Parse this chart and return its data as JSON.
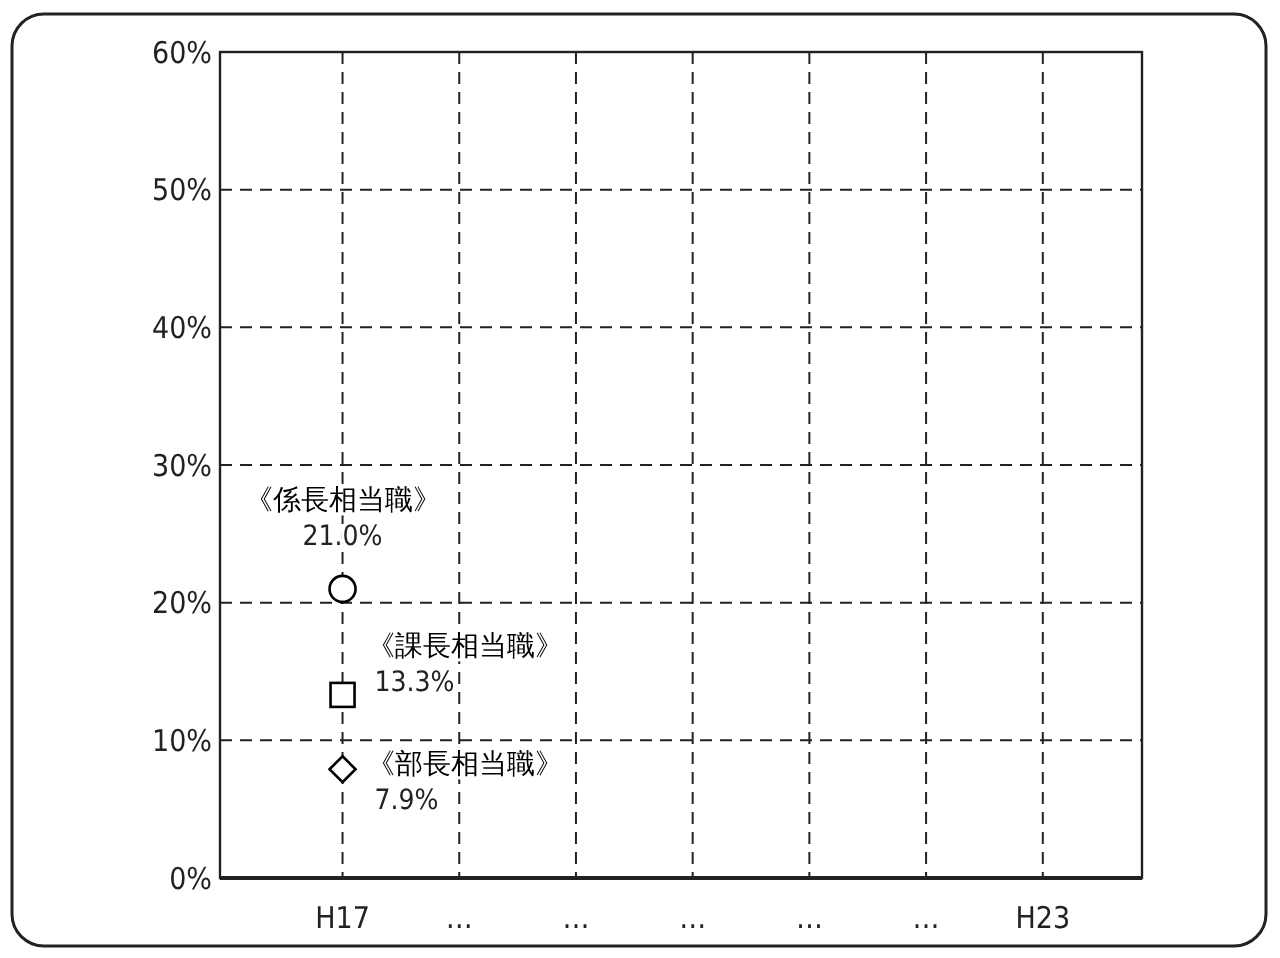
{
  "chart_data": {
    "type": "scatter",
    "categories": [
      "H17",
      "…",
      "…",
      "…",
      "…",
      "…",
      "H23"
    ],
    "series": [
      {
        "name": "《係長相当職》",
        "color": "#000000",
        "marker": "circle",
        "values": [
          21.0,
          null,
          null,
          null,
          null,
          null,
          null
        ],
        "value_labels": [
          "21.0%",
          null,
          null,
          null,
          null,
          null,
          null
        ]
      },
      {
        "name": "《課長相当職》",
        "color": "#000000",
        "marker": "square",
        "values": [
          13.3,
          null,
          null,
          null,
          null,
          null,
          null
        ],
        "value_labels": [
          "13.3%",
          null,
          null,
          null,
          null,
          null,
          null
        ]
      },
      {
        "name": "《部長相当職》",
        "color": "#000000",
        "marker": "diamond",
        "values": [
          7.9,
          null,
          null,
          null,
          null,
          null,
          null
        ],
        "value_labels": [
          "7.9%",
          null,
          null,
          null,
          null,
          null,
          null
        ]
      }
    ],
    "ylim": [
      0,
      60
    ],
    "yticks": [
      {
        "value": 0,
        "label": "0%"
      },
      {
        "value": 10,
        "label": "10%"
      },
      {
        "value": 20,
        "label": "20%"
      },
      {
        "value": 30,
        "label": "30%"
      },
      {
        "value": 40,
        "label": "40%"
      },
      {
        "value": 50,
        "label": "50%"
      },
      {
        "value": 60,
        "label": "60%"
      }
    ],
    "grid": true
  }
}
